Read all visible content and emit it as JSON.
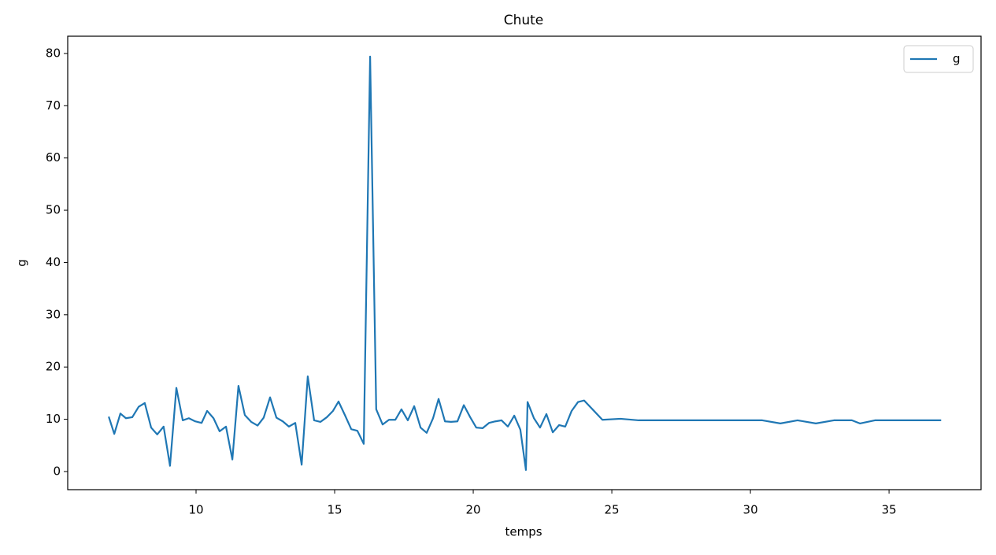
{
  "chart_data": {
    "type": "line",
    "title": "Chute",
    "xlabel": "temps",
    "ylabel": "g",
    "x": [
      6.85,
      7.05,
      7.27,
      7.47,
      7.7,
      7.93,
      8.15,
      8.38,
      8.6,
      8.83,
      9.06,
      9.29,
      9.52,
      9.74,
      9.97,
      10.2,
      10.4,
      10.63,
      10.85,
      11.08,
      11.31,
      11.53,
      11.76,
      11.99,
      12.22,
      12.44,
      12.67,
      12.9,
      13.13,
      13.35,
      13.58,
      13.81,
      14.03,
      14.26,
      14.49,
      14.72,
      14.94,
      15.14,
      15.37,
      15.6,
      15.82,
      16.05,
      16.28,
      16.5,
      16.73,
      16.96,
      17.19,
      17.41,
      17.64,
      17.87,
      18.1,
      18.32,
      18.55,
      18.75,
      18.98,
      19.2,
      19.43,
      19.66,
      19.89,
      20.11,
      20.34,
      20.57,
      20.8,
      21.02,
      21.25,
      21.48,
      21.7,
      21.9,
      21.96,
      22.19,
      22.41,
      22.64,
      22.87,
      23.1,
      23.32,
      23.55,
      23.78,
      24.0,
      24.66,
      25.31,
      25.97,
      26.62,
      27.27,
      27.93,
      28.58,
      29.35,
      29.77,
      30.43,
      31.08,
      31.7,
      32.36,
      33.01,
      33.66,
      33.95,
      34.49,
      35.14,
      35.8,
      36.45,
      36.88
    ],
    "series": [
      {
        "name": "g",
        "color": "#1f77b4",
        "values": [
          10.5,
          7.2,
          11.1,
          10.2,
          10.4,
          12.4,
          13.1,
          8.4,
          7.1,
          8.6,
          1.1,
          16.0,
          9.8,
          10.2,
          9.6,
          9.3,
          11.6,
          10.2,
          7.7,
          8.6,
          2.3,
          16.4,
          10.8,
          9.5,
          8.8,
          10.3,
          14.2,
          10.3,
          9.6,
          8.6,
          9.3,
          1.3,
          18.2,
          9.8,
          9.5,
          10.4,
          11.6,
          13.4,
          10.8,
          8.1,
          7.8,
          5.3,
          79.4,
          11.9,
          9.0,
          9.9,
          9.9,
          11.9,
          9.8,
          12.5,
          8.4,
          7.4,
          10.2,
          13.9,
          9.6,
          9.5,
          9.6,
          12.7,
          10.4,
          8.4,
          8.3,
          9.3,
          9.6,
          9.8,
          8.6,
          10.7,
          8.0,
          0.3,
          13.3,
          10.2,
          8.4,
          11.0,
          7.5,
          8.9,
          8.6,
          11.6,
          13.3,
          13.6,
          9.9,
          10.1,
          9.8,
          9.8,
          9.8,
          9.8,
          9.8,
          9.8,
          9.8,
          9.8,
          9.2,
          9.8,
          9.2,
          9.8,
          9.8,
          9.2,
          9.8,
          9.8,
          9.8,
          9.8,
          9.8
        ]
      }
    ],
    "xlim": [
      5.37,
      38.32
    ],
    "ylim": [
      -3.47,
      83.3
    ],
    "xticks": [
      10,
      15,
      20,
      25,
      30,
      35
    ],
    "yticks": [
      0,
      10,
      20,
      30,
      40,
      50,
      60,
      70,
      80
    ],
    "legend": "upper right",
    "grid": false
  }
}
